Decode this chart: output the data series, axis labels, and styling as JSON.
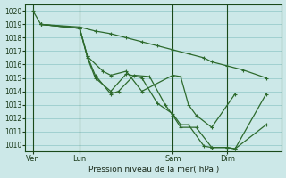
{
  "bg_color": "#cce8e8",
  "grid_color": "#99cccc",
  "line_color": "#2d6a2d",
  "xlabel": "Pression niveau de la mer( hPa )",
  "ylim": [
    1009.5,
    1020.5
  ],
  "yticks": [
    1010,
    1011,
    1012,
    1013,
    1014,
    1015,
    1016,
    1017,
    1018,
    1019,
    1020
  ],
  "x_tick_labels": [
    "Ven",
    "Lun",
    "Sam",
    "Dim"
  ],
  "x_tick_positions": [
    0.5,
    3.5,
    9.5,
    13.0
  ],
  "xlim": [
    0,
    16.5
  ],
  "series": [
    {
      "x": [
        0.5,
        1.0,
        3.5,
        4.5,
        5.5,
        6.5,
        7.5,
        8.5,
        9.5,
        10.5,
        11.5,
        12.0,
        13.0,
        14.0,
        15.5
      ],
      "y": [
        1020.0,
        1019.0,
        1018.8,
        1018.5,
        1018.3,
        1018.0,
        1017.7,
        1017.4,
        1017.1,
        1016.8,
        1016.5,
        1016.2,
        1015.9,
        1015.6,
        1015.0
      ]
    },
    {
      "x": [
        1.0,
        3.5,
        4.0,
        5.0,
        5.5,
        6.5,
        7.5,
        9.5,
        10.0,
        10.5,
        11.0,
        12.0,
        13.5
      ],
      "y": [
        1019.0,
        1018.7,
        1016.6,
        1015.5,
        1015.2,
        1015.5,
        1014.0,
        1015.2,
        1015.1,
        1013.0,
        1012.2,
        1011.3,
        1013.8
      ]
    },
    {
      "x": [
        1.0,
        3.5,
        4.0,
        4.5,
        5.5,
        6.0,
        7.0,
        8.0,
        9.0,
        9.5,
        10.0,
        11.0,
        12.0,
        13.0,
        13.5,
        15.5
      ],
      "y": [
        1019.0,
        1018.7,
        1016.6,
        1015.2,
        1013.8,
        1014.0,
        1015.2,
        1015.1,
        1013.0,
        1012.2,
        1011.3,
        1011.3,
        1009.8,
        1009.8,
        1009.7,
        1011.5
      ]
    },
    {
      "x": [
        1.0,
        3.5,
        4.0,
        4.5,
        5.5,
        6.5,
        7.5,
        8.5,
        9.5,
        10.0,
        10.5,
        11.5,
        12.0,
        13.0,
        13.5,
        15.5
      ],
      "y": [
        1019.0,
        1018.7,
        1016.5,
        1015.0,
        1014.0,
        1015.3,
        1015.0,
        1013.1,
        1012.3,
        1011.5,
        1011.5,
        1009.9,
        1009.8,
        1009.8,
        1009.7,
        1013.8
      ]
    }
  ],
  "vlines": [
    0.5,
    3.5,
    9.5,
    13.0
  ]
}
